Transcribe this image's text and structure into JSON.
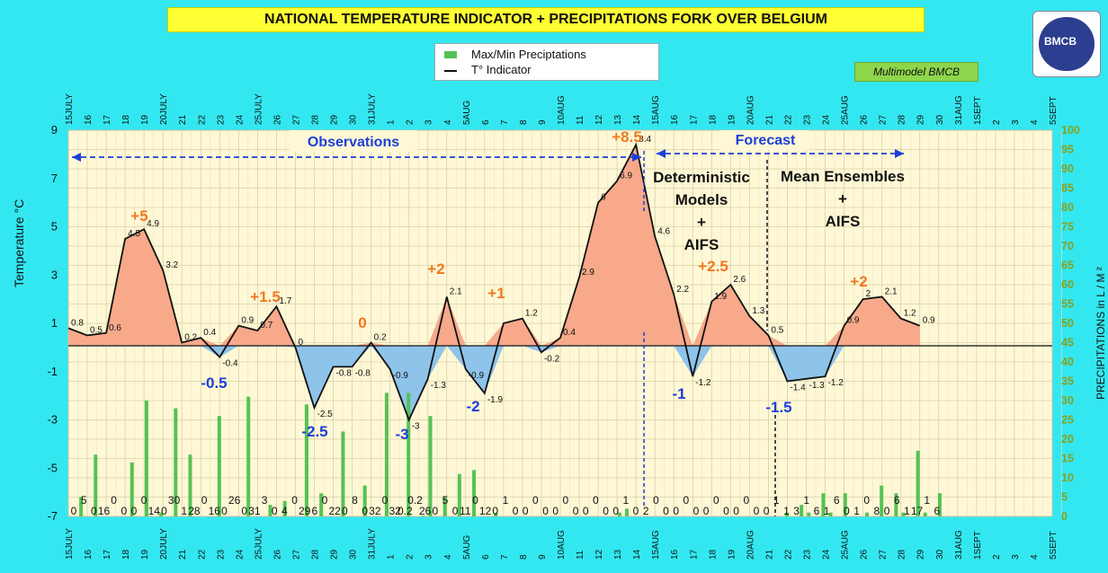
{
  "title": "NATIONAL TEMPERATURE INDICATOR + PRECIPITATIONS FORK OVER  BELGIUM",
  "legend": {
    "precip_label": "Max/Min Preciptations",
    "temp_label": "T° Indicator"
  },
  "model_label": "Multimodel BMCB",
  "logo_text": "BMCB",
  "colors": {
    "background": "#33e7f0",
    "plot_area": "#fff8d6",
    "positive_fill": "#f7a98a",
    "negative_fill": "#8ec3ea",
    "bars": "#55c255",
    "orange_annotation": "#f07820",
    "blue_annotation": "#1c3fd8"
  },
  "chart_data": {
    "type": "line",
    "ylabel_left": "Temperature   °C",
    "ylabel_right": "PRECIPITATIONS in L / M ²",
    "y_left_ticks": [
      "9",
      "7",
      "5",
      "3",
      "1",
      "-1",
      "-3",
      "-5",
      "-7"
    ],
    "y_right_ticks": [
      "100",
      "95",
      "90",
      "85",
      "80",
      "75",
      "70",
      "65",
      "60",
      "55",
      "50",
      "45",
      "40",
      "35",
      "30",
      "25",
      "20",
      "15",
      "10",
      "5",
      "0"
    ],
    "ylim_left": [
      -7,
      9
    ],
    "ylim_right": [
      0,
      100
    ],
    "x_labels": [
      "15JULY",
      "16",
      "17",
      "18",
      "19",
      "20JULY",
      "21",
      "22",
      "23",
      "24",
      "25JULY",
      "26",
      "27",
      "28",
      "29",
      "30",
      "31JULY",
      "1",
      "2",
      "3",
      "4",
      "5AUG",
      "6",
      "7",
      "8",
      "9",
      "10AUG",
      "11",
      "12",
      "13",
      "14",
      "15AUG",
      "16",
      "17",
      "18",
      "19",
      "20AUG",
      "21",
      "22",
      "23",
      "24",
      "25AUG",
      "26",
      "27",
      "28",
      "29",
      "30",
      "31AUG",
      "1SEPT",
      "2",
      "3",
      "4",
      "5SEPT"
    ],
    "temperature": [
      0.8,
      0.5,
      0.6,
      4.5,
      4.9,
      3.2,
      0.2,
      0.4,
      -0.4,
      0.9,
      0.7,
      1.7,
      0,
      -2.5,
      -0.8,
      -0.8,
      0.2,
      -0.9,
      -3,
      -1.3,
      2.1,
      -0.9,
      -1.9,
      1,
      1.2,
      -0.2,
      0.4,
      2.9,
      6,
      6.9,
      8.4,
      4.6,
      2.2,
      -1.2,
      1.9,
      2.6,
      1.3,
      0.5,
      -1.4,
      -1.3,
      -1.2,
      0.9,
      2,
      2.1,
      1.2,
      0.9
    ],
    "temperature_labels": [
      "0.8",
      "0.5",
      "0.6",
      "4.5",
      "4.9",
      "3.2",
      "0.2",
      "0.4",
      "-0.4",
      "0.9",
      "0.7",
      "1.7",
      "0",
      "-2.5",
      "-0.8",
      "-0.8",
      "0.2",
      "-0.9",
      "-3",
      "-1.3",
      "2.1",
      "-0.9",
      "-1.9",
      "",
      "1.2",
      "-0.2",
      "0.4",
      "2.9",
      "6",
      "6.9",
      "8.4",
      "4.6",
      "2.2",
      "-1.2",
      "1.9",
      "2.6",
      "1.3",
      "0.5",
      "-1.4",
      "-1.3",
      "-1.2",
      "0.9",
      "2",
      "2.1",
      "1.2",
      "0.9"
    ],
    "precipitation": [
      0,
      5,
      0,
      16,
      0,
      0,
      0,
      0,
      14,
      0,
      30,
      0,
      1,
      0,
      28,
      0,
      16,
      0,
      0,
      0,
      26,
      0,
      0,
      0,
      31,
      0,
      0,
      3,
      0,
      4,
      0,
      0,
      29,
      0,
      6,
      0,
      0,
      22,
      0,
      0,
      8,
      0,
      0,
      32,
      0,
      0,
      32,
      0,
      0.2,
      26,
      0,
      5,
      0,
      11,
      0,
      12,
      0,
      0,
      1,
      0,
      0,
      0,
      0,
      0,
      0,
      0,
      0,
      0,
      0,
      0,
      0,
      0,
      0,
      0,
      0,
      1,
      2,
      0,
      0,
      0,
      0,
      0,
      0,
      0,
      0,
      0,
      0,
      0,
      0,
      0,
      0,
      0,
      0,
      0,
      0,
      0,
      0,
      0,
      1,
      0,
      3,
      1,
      0,
      6,
      1,
      0,
      6,
      0,
      0,
      1,
      0,
      8,
      0,
      6,
      1,
      0,
      17,
      1,
      0,
      6
    ],
    "precip_labels": [
      "0",
      "5",
      "0",
      "16",
      "0",
      "0",
      "0",
      "0",
      "14",
      "0",
      "30",
      "1",
      "28",
      "0",
      "16",
      "0",
      "26",
      "0",
      "31",
      "3",
      "0",
      "4",
      "0",
      "29",
      "6",
      "0",
      "22",
      "0",
      "8",
      "0",
      "32",
      "0",
      "32",
      "0.2",
      "0.2",
      "26",
      "0",
      "5",
      "0",
      "11",
      "0",
      "12",
      "0",
      "1",
      "0",
      "0",
      "0",
      "0",
      "0",
      "0",
      "0",
      "0",
      "0",
      "0",
      "0",
      "1",
      "0",
      "2",
      "0",
      "0",
      "0",
      "0",
      "0",
      "0",
      "0",
      "0",
      "0",
      "0",
      "0",
      "0",
      "1",
      "1",
      "3",
      "1",
      "6",
      "1",
      "6",
      "0",
      "1",
      "0",
      "8",
      "0",
      "6",
      "1",
      "17",
      "1",
      "6"
    ],
    "annotations_orange": [
      "+5",
      "+1.5",
      "0",
      "+2",
      "+1",
      "+8.5",
      "+2.5",
      "+2"
    ],
    "annotations_blue": [
      "-0.5",
      "-2.5",
      "-3",
      "-2",
      "-1",
      "-1.5"
    ],
    "observations_label": "Observations",
    "forecast_label": "Forecast",
    "deterministic_label": [
      "Deterministic",
      "Models",
      "+",
      "AIFS"
    ],
    "ensemble_label": [
      "Mean Ensembles",
      "+",
      "AIFS"
    ]
  }
}
